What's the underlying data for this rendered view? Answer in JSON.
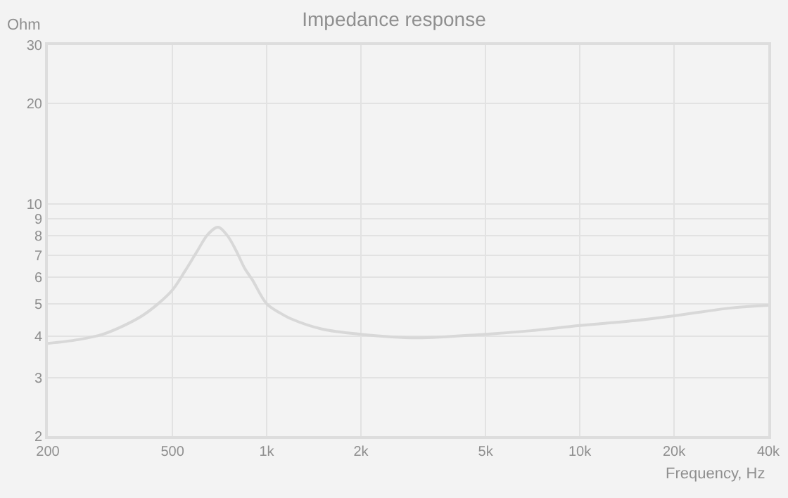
{
  "chart_data": {
    "type": "line",
    "title": "Impedance response",
    "xlabel": "Frequency, Hz",
    "ylabel": "Ohm",
    "log": "xy",
    "grid": true,
    "marker": "none",
    "line_style": "solid",
    "x": [
      200,
      250,
      300,
      350,
      400,
      450,
      500,
      550,
      600,
      650,
      700,
      750,
      800,
      850,
      900,
      1000,
      1100,
      1200,
      1500,
      2000,
      3000,
      5000,
      7000,
      10000,
      15000,
      20000,
      30000,
      40000
    ],
    "series": [
      {
        "color": "#d8d8d8",
        "values": [
          3.8,
          3.9,
          4.05,
          4.3,
          4.6,
          5.0,
          5.5,
          6.3,
          7.2,
          8.1,
          8.5,
          8.0,
          7.2,
          6.4,
          5.9,
          5.0,
          4.7,
          4.5,
          4.2,
          4.05,
          3.95,
          4.05,
          4.15,
          4.3,
          4.45,
          4.6,
          4.85,
          4.95
        ]
      }
    ],
    "xlim": [
      200,
      40000
    ],
    "ylim": [
      2,
      30
    ],
    "xticks": [
      200,
      500,
      {
        "value": 1000,
        "label": "1k"
      },
      {
        "value": 2000,
        "label": "2k"
      },
      {
        "value": 5000,
        "label": "5k"
      },
      {
        "value": 10000,
        "label": "10k"
      },
      {
        "value": 20000,
        "label": "20k"
      },
      {
        "value": 40000,
        "label": "40k"
      }
    ],
    "yticks": [
      2,
      3,
      4,
      5,
      6,
      7,
      8,
      9,
      10,
      20,
      30
    ]
  }
}
